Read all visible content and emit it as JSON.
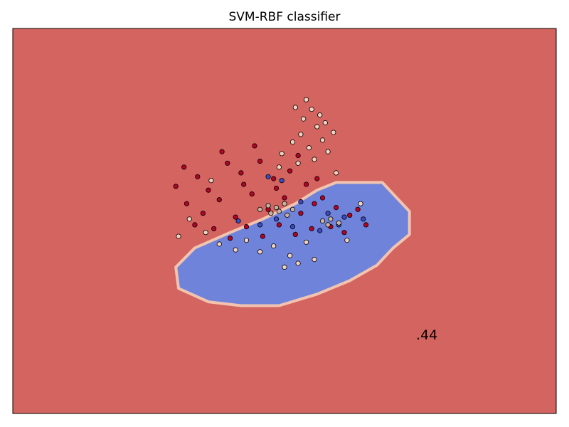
{
  "chart_data": {
    "type": "scatter",
    "title": "SVM-RBF classifier",
    "xlabel": "",
    "ylabel": "",
    "xticks": [],
    "yticks": [],
    "grid": false,
    "legend": "none",
    "xlim": [
      -10,
      10
    ],
    "ylim": [
      -10,
      10
    ],
    "annotation": ".44",
    "colors": {
      "background_region": "#d4645f",
      "decision_region": "#7083db",
      "region_edge_light": "#f2c4b0",
      "class_dark_red": "#b40426",
      "class_light": "#efd4c2",
      "class_blue": "#3b4cc0",
      "class_tan": "#c9b3a5"
    },
    "decision_region_outline": [
      [
        1.9,
        2.0
      ],
      [
        3.6,
        2.0
      ],
      [
        4.0,
        1.4
      ],
      [
        4.6,
        0.5
      ],
      [
        4.6,
        -0.7
      ],
      [
        4.0,
        -1.4
      ],
      [
        3.4,
        -2.3
      ],
      [
        2.4,
        -3.1
      ],
      [
        1.2,
        -3.8
      ],
      [
        -0.2,
        -4.4
      ],
      [
        -1.6,
        -4.4
      ],
      [
        -2.8,
        -4.2
      ],
      [
        -3.9,
        -3.5
      ],
      [
        -4.0,
        -2.4
      ],
      [
        -3.3,
        -1.4
      ],
      [
        -2.0,
        -0.6
      ],
      [
        -0.8,
        0.1
      ],
      [
        0.4,
        0.9
      ],
      [
        1.2,
        1.6
      ]
    ],
    "series": [
      {
        "name": "",
        "color": "#b40426",
        "points": [
          [
            -3.2,
            2.3
          ],
          [
            -2.8,
            1.6
          ],
          [
            -2.1,
            3.0
          ],
          [
            -1.6,
            2.5
          ],
          [
            -0.9,
            3.1
          ],
          [
            -0.4,
            2.2
          ],
          [
            0.2,
            2.6
          ],
          [
            0.8,
            1.9
          ],
          [
            1.4,
            1.2
          ],
          [
            1.9,
            0.7
          ],
          [
            2.4,
            0.3
          ],
          [
            3.0,
            -0.2
          ],
          [
            -3.6,
            0.9
          ],
          [
            -3.0,
            0.4
          ],
          [
            -2.4,
            1.1
          ],
          [
            -1.8,
            0.2
          ],
          [
            -1.2,
            1.4
          ],
          [
            -0.6,
            0.6
          ],
          [
            0.0,
            1.2
          ],
          [
            0.6,
            0.4
          ],
          [
            1.1,
            0.9
          ],
          [
            1.7,
            -0.3
          ],
          [
            2.2,
            -0.6
          ],
          [
            -2.6,
            -0.4
          ],
          [
            -2.0,
            -0.9
          ],
          [
            -1.4,
            -0.3
          ],
          [
            -0.8,
            -0.8
          ],
          [
            -0.2,
            -0.2
          ],
          [
            0.4,
            -0.7
          ],
          [
            1.0,
            -0.4
          ],
          [
            -4.0,
            1.8
          ],
          [
            -3.7,
            2.8
          ],
          [
            -2.3,
            3.6
          ],
          [
            -1.1,
            3.9
          ],
          [
            0.5,
            3.4
          ],
          [
            -3.3,
            -0.2
          ],
          [
            2.7,
            0.6
          ],
          [
            -1.5,
            1.9
          ],
          [
            -0.3,
            1.7
          ],
          [
            1.2,
            2.2
          ]
        ]
      },
      {
        "name": "",
        "color": "#efd4c2",
        "points": [
          [
            0.4,
            5.9
          ],
          [
            0.7,
            5.3
          ],
          [
            1.0,
            5.8
          ],
          [
            1.2,
            4.9
          ],
          [
            0.6,
            4.5
          ],
          [
            1.4,
            4.2
          ],
          [
            0.9,
            3.8
          ],
          [
            0.3,
            4.1
          ],
          [
            1.6,
            3.6
          ],
          [
            1.1,
            3.2
          ],
          [
            0.5,
            3.0
          ],
          [
            1.8,
            4.6
          ],
          [
            -0.1,
            3.5
          ],
          [
            1.3,
            5.5
          ],
          [
            0.8,
            6.3
          ],
          [
            1.5,
            5.1
          ],
          [
            -1.4,
            -1.0
          ],
          [
            -0.9,
            -1.6
          ],
          [
            -0.4,
            -1.3
          ],
          [
            0.2,
            -1.8
          ],
          [
            0.8,
            -1.1
          ],
          [
            0.5,
            -2.2
          ],
          [
            1.1,
            -2.0
          ],
          [
            -2.9,
            -0.6
          ],
          [
            -3.5,
            0.1
          ],
          [
            -2.4,
            -1.2
          ],
          [
            2.3,
            -1.0
          ],
          [
            -0.2,
            2.8
          ],
          [
            1.9,
            2.5
          ],
          [
            0.0,
            -2.4
          ],
          [
            -1.8,
            -1.5
          ],
          [
            -3.9,
            -0.8
          ],
          [
            2.8,
            0.9
          ],
          [
            -2.7,
            2.1
          ]
        ]
      },
      {
        "name": "",
        "color": "#3b4cc0",
        "points": [
          [
            -0.6,
            2.3
          ],
          [
            -0.1,
            2.1
          ],
          [
            0.6,
            1.0
          ],
          [
            1.6,
            0.4
          ],
          [
            2.2,
            0.2
          ],
          [
            -1.7,
            0.0
          ],
          [
            -0.9,
            -0.2
          ],
          [
            -0.3,
            0.1
          ],
          [
            0.3,
            -0.3
          ],
          [
            1.3,
            -0.5
          ],
          [
            2.9,
            0.1
          ],
          [
            2.0,
            -0.2
          ]
        ]
      },
      {
        "name": "",
        "color": "#c9b3a5",
        "points": [
          [
            -0.9,
            0.6
          ],
          [
            -0.6,
            0.8
          ],
          [
            -0.3,
            0.7
          ],
          [
            0.0,
            0.9
          ],
          [
            0.3,
            0.6
          ],
          [
            -0.5,
            0.4
          ],
          [
            0.1,
            0.3
          ],
          [
            -0.2,
            0.5
          ],
          [
            1.4,
            0.0
          ],
          [
            1.7,
            0.1
          ],
          [
            2.0,
            -0.1
          ],
          [
            1.6,
            -0.2
          ]
        ]
      }
    ]
  }
}
